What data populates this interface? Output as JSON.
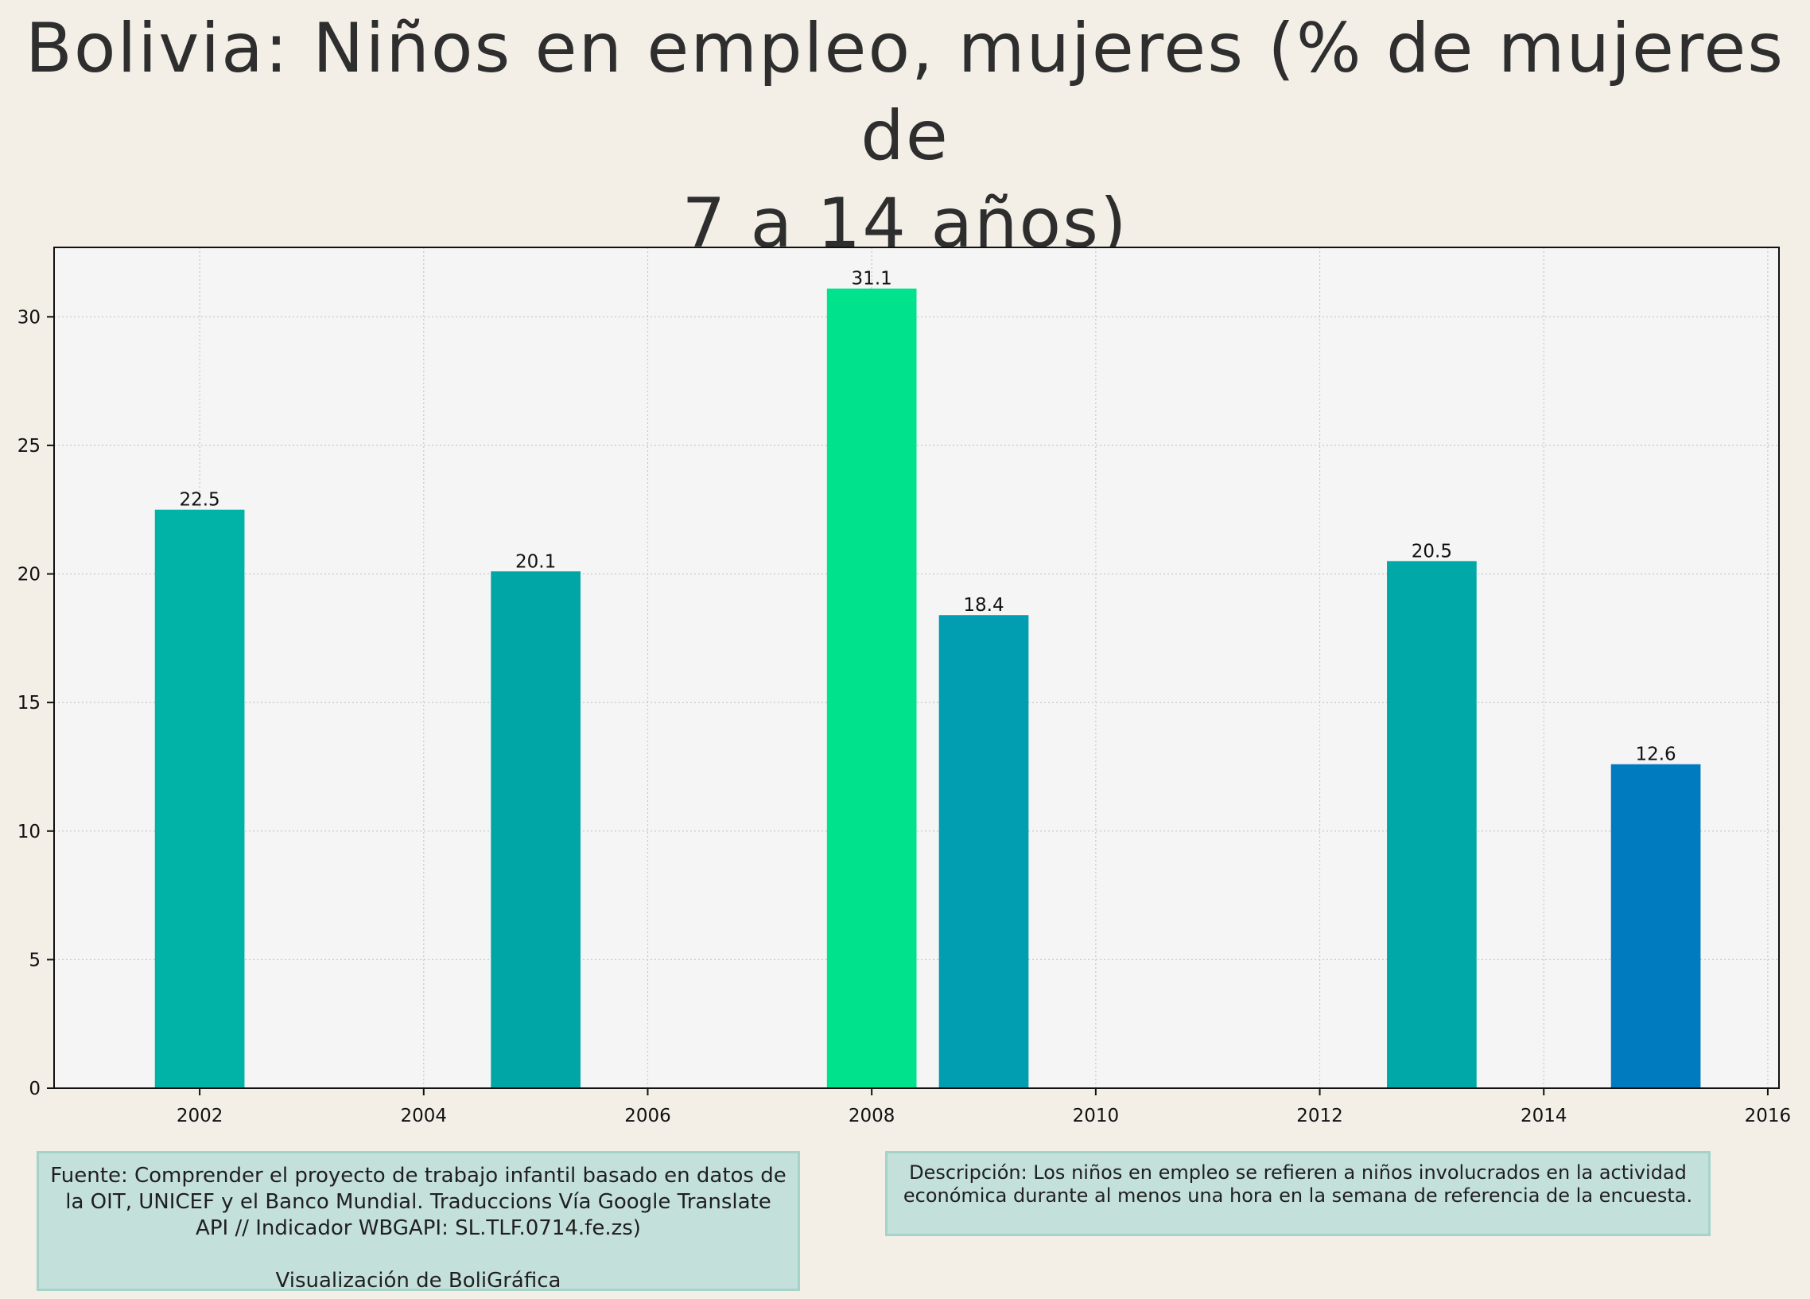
{
  "title_line1": "Bolivia:  Niños en empleo, mujeres (% de mujeres de",
  "title_line2": "7 a 14 años)",
  "source_text": "Fuente: Comprender el proyecto de trabajo infantil basado en datos de la OIT, UNICEF y el Banco Mundial. Traduccions Vía Google Translate API // Indicador WBGAPI: SL.TLF.0714.fe.zs)",
  "credit_text": "Visualización de BoliGráfica",
  "description_text": "Descripción: Los niños en empleo se refieren a niños involucrados en la actividad económica durante al menos una hora en la semana de referencia de la encuesta.",
  "colors": {
    "background": "#f3efe7",
    "plot_background": "#f5f5f5",
    "grid": "#c8c8c8"
  },
  "chart_data": {
    "type": "bar",
    "title": "Bolivia:  Niños en empleo, mujeres (% de mujeres de 7 a 14 años)",
    "xlabel": "",
    "ylabel": "",
    "x": [
      2002,
      2005,
      2008,
      2009,
      2013,
      2015
    ],
    "values": [
      22.5,
      20.1,
      31.1,
      18.4,
      20.5,
      12.6
    ],
    "data_labels": [
      "22.5",
      "20.1",
      "31.1",
      "18.4",
      "20.5",
      "12.6"
    ],
    "bar_colors": [
      "#00b3a6",
      "#00a6a6",
      "#00e38c",
      "#009eb0",
      "#00a8a8",
      "#007bbf"
    ],
    "xlim": [
      2000.7,
      2016.1
    ],
    "ylim": [
      0,
      32.7
    ],
    "xticks": [
      2002,
      2004,
      2006,
      2008,
      2010,
      2012,
      2014,
      2016
    ],
    "yticks": [
      0,
      5,
      10,
      15,
      20,
      25,
      30
    ],
    "bar_width_years": 0.8,
    "grid": true,
    "legend": "none"
  }
}
